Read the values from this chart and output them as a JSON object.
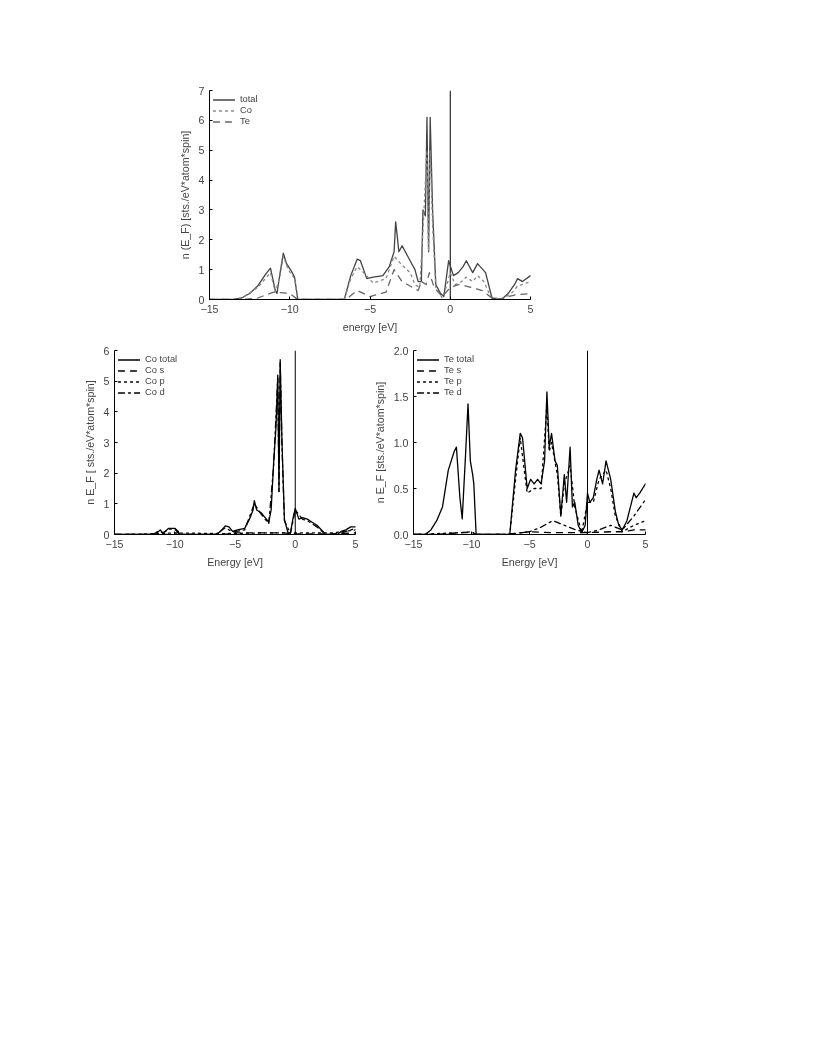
{
  "chart_data": [
    {
      "type": "line",
      "xlabel": "energy [eV]",
      "ylabel": "n (E_F) [sts./eV*atom*spin]",
      "xlim": [
        -15,
        5
      ],
      "ylim": [
        0,
        7
      ],
      "xticks": [
        -15,
        -10,
        -5,
        0,
        5
      ],
      "yticks": [
        0,
        1,
        2,
        3,
        4,
        5,
        6,
        7
      ],
      "grid": false,
      "legend": "top left",
      "ref_lines": [
        {
          "axis": "x",
          "value": 0,
          "color": "#000000"
        }
      ],
      "series": [
        {
          "name": "total",
          "color": "#444444",
          "line_style": "solid",
          "x": [
            -15,
            -13.5,
            -13,
            -12.5,
            -12,
            -11.5,
            -11.2,
            -10.9,
            -10.8,
            -10.6,
            -10.4,
            -10.2,
            -9.9,
            -9.7,
            -9.5,
            -6.6,
            -6.2,
            -5.8,
            -5.6,
            -5.2,
            -4.8,
            -4.2,
            -3.8,
            -3.5,
            -3.4,
            -3.2,
            -3.0,
            -2.6,
            -2.2,
            -2.0,
            -1.8,
            -1.7,
            -1.55,
            -1.45,
            -1.35,
            -1.25,
            -1.1,
            -0.9,
            -0.6,
            -0.4,
            -0.25,
            -0.1,
            0.2,
            0.5,
            0.8,
            1.0,
            1.4,
            1.7,
            2.2,
            2.6,
            3.2,
            3.6,
            4.0,
            4.2,
            4.5,
            5
          ],
          "values": [
            0,
            0,
            0.05,
            0.2,
            0.45,
            0.85,
            1.05,
            0.3,
            0.2,
            0.9,
            1.55,
            1.2,
            0.95,
            0.75,
            0,
            0,
            0.8,
            1.35,
            1.3,
            0.7,
            0.75,
            0.8,
            1.1,
            1.6,
            2.6,
            1.6,
            1.8,
            1.4,
            1.0,
            0.6,
            0.6,
            3.0,
            2.8,
            6.1,
            1.6,
            6.1,
            3.0,
            0.5,
            0.2,
            0.1,
            0.7,
            1.3,
            0.8,
            0.9,
            1.1,
            1.3,
            0.9,
            1.2,
            0.9,
            0.05,
            0,
            0.2,
            0.5,
            0.7,
            0.6,
            0.8
          ]
        },
        {
          "name": "Co",
          "color": "#888888",
          "line_style": "dotted",
          "x": [
            -15,
            -13.5,
            -13,
            -12,
            -11.2,
            -10.9,
            -10.6,
            -10.4,
            -10.1,
            -9.7,
            -9.5,
            -6.6,
            -6.2,
            -5.8,
            -5.4,
            -4.8,
            -4.0,
            -3.5,
            -3.0,
            -2.5,
            -2.2,
            -1.9,
            -1.7,
            -1.45,
            -1.35,
            -1.25,
            -1.1,
            -0.9,
            -0.5,
            -0.2,
            0,
            0.3,
            0.7,
            1.0,
            1.4,
            1.7,
            2.1,
            2.5,
            3.2,
            3.8,
            4.2,
            5
          ],
          "values": [
            0,
            0,
            0.05,
            0.4,
            0.9,
            0.25,
            0.8,
            1.45,
            1.0,
            0.7,
            0,
            0,
            0.7,
            1.1,
            0.9,
            0.55,
            0.7,
            1.45,
            1.15,
            0.9,
            0.5,
            0.4,
            2.3,
            5.0,
            1.6,
            5.0,
            2.5,
            0.4,
            0.05,
            0.5,
            0.9,
            0.5,
            0.6,
            0.75,
            0.6,
            0.8,
            0.6,
            0.1,
            0,
            0.2,
            0.45,
            0.6
          ]
        },
        {
          "name": "Te",
          "color": "#666666",
          "line_style": "dashed",
          "x": [
            -15,
            -13,
            -12,
            -11,
            -10,
            -9.5,
            -6.5,
            -5.8,
            -5,
            -4,
            -3.5,
            -3,
            -2,
            -1.8,
            -1.5,
            -1.3,
            -1,
            -0.5,
            0,
            0.5,
            1,
            2,
            2.6,
            3,
            4,
            5
          ],
          "values": [
            0,
            0,
            0.05,
            0.25,
            0.2,
            0,
            0,
            0.3,
            0.1,
            0.25,
            1.0,
            0.6,
            0.3,
            0.6,
            0.5,
            0.9,
            0.4,
            0.1,
            0.4,
            0.5,
            0.45,
            0.3,
            0.05,
            0,
            0.15,
            0.2
          ]
        }
      ]
    },
    {
      "type": "line",
      "xlabel": "Energy [eV]",
      "ylabel": "n E_F [ sts./eV*atom*spin]",
      "xlim": [
        -15,
        5
      ],
      "ylim": [
        0,
        6
      ],
      "xticks": [
        -15,
        -10,
        -5,
        0,
        5
      ],
      "yticks": [
        0,
        1,
        2,
        3,
        4,
        5,
        6
      ],
      "grid": false,
      "legend": "top left",
      "ref_lines": [
        {
          "axis": "x",
          "value": 0,
          "color": "#000000"
        }
      ],
      "series": [
        {
          "name": "Co total",
          "color": "#000000",
          "line_style": "solid",
          "x": [
            -15,
            -12,
            -11.5,
            -11.2,
            -11,
            -10.8,
            -10.5,
            -10,
            -9.7,
            -9.6,
            -6.6,
            -6.2,
            -5.8,
            -5.5,
            -5.2,
            -4.8,
            -4.2,
            -3.8,
            -3.5,
            -3.4,
            -3.2,
            -2.8,
            -2.4,
            -2.2,
            -2.0,
            -1.8,
            -1.6,
            -1.45,
            -1.35,
            -1.25,
            -1.1,
            -0.9,
            -0.6,
            -0.4,
            -0.2,
            0,
            0.3,
            0.6,
            1.0,
            1.4,
            1.8,
            2.3,
            2.5,
            3.5,
            3.8,
            4.2,
            4.6,
            5
          ],
          "values": [
            0,
            0,
            0.05,
            0.15,
            0.05,
            0.1,
            0.2,
            0.2,
            0.1,
            0,
            0,
            0.1,
            0.28,
            0.25,
            0.1,
            0.15,
            0.2,
            0.5,
            0.8,
            1.1,
            0.8,
            0.7,
            0.5,
            0.4,
            0.8,
            2.3,
            3.5,
            5.2,
            1.4,
            5.7,
            3.0,
            0.5,
            0.05,
            0.05,
            0.5,
            0.85,
            0.5,
            0.55,
            0.5,
            0.4,
            0.3,
            0.1,
            0,
            0,
            0.1,
            0.15,
            0.25,
            0.25
          ]
        },
        {
          "name": "Co s",
          "color": "#000000",
          "line_style": "dashed",
          "x": [
            -15,
            -6,
            -5,
            -1,
            0,
            3,
            5
          ],
          "values": [
            0,
            0,
            0.05,
            0.05,
            0.02,
            0.02,
            0.05
          ]
        },
        {
          "name": "Co p",
          "color": "#000000",
          "line_style": "dotted",
          "x": [
            -15,
            -12,
            -10,
            -6,
            -3,
            -1,
            0,
            2,
            3,
            4,
            5
          ],
          "values": [
            0,
            0.02,
            0.05,
            0.03,
            0.05,
            0.05,
            0.05,
            0.05,
            0.05,
            0.1,
            0.15
          ]
        },
        {
          "name": "Co d",
          "color": "#000000",
          "line_style": "dashdot",
          "x": [
            -15,
            -12,
            -11.2,
            -11,
            -10.5,
            -10,
            -9.6,
            -6.6,
            -5.8,
            -5.2,
            -4.2,
            -3.4,
            -2.8,
            -2.2,
            -1.8,
            -1.45,
            -1.35,
            -1.25,
            -1.1,
            -0.9,
            -0.4,
            0,
            0.6,
            1.0,
            1.8,
            2.5,
            3.5,
            4.2,
            5
          ],
          "values": [
            0,
            0,
            0.12,
            0.04,
            0.18,
            0.18,
            0,
            0,
            0.22,
            0.08,
            0.15,
            1.0,
            0.65,
            0.35,
            2.2,
            5.1,
            1.4,
            5.6,
            2.9,
            0.45,
            0.03,
            0.8,
            0.5,
            0.45,
            0.25,
            0,
            0,
            0.1,
            0.2
          ]
        }
      ]
    },
    {
      "type": "line",
      "xlabel": "Energy [eV]",
      "ylabel": "n E_F [sts./eV*atom*spin]",
      "xlim": [
        -15,
        5
      ],
      "ylim": [
        0,
        2
      ],
      "xticks": [
        -15,
        -10,
        -5,
        0,
        5
      ],
      "yticks": [
        {
          "value": 0,
          "label": "0.0"
        },
        {
          "value": 0.5,
          "label": "0.5"
        },
        {
          "value": 1,
          "label": "1.0"
        },
        {
          "value": 1.5,
          "label": "1.5"
        },
        {
          "value": 2,
          "label": "2.0"
        }
      ],
      "grid": false,
      "legend": "top left",
      "ref_lines": [
        {
          "axis": "x",
          "value": 0,
          "color": "#000000"
        }
      ],
      "series": [
        {
          "name": "Te total",
          "color": "#000000",
          "line_style": "solid",
          "x": [
            -15,
            -14,
            -13.5,
            -13,
            -12.5,
            -12,
            -11.5,
            -11.3,
            -11,
            -10.8,
            -10.5,
            -10.3,
            -10.1,
            -9.9,
            -9.8,
            -9.6,
            -6.7,
            -6.2,
            -5.8,
            -5.6,
            -5.2,
            -4.9,
            -4.6,
            -4.3,
            -4.0,
            -3.7,
            -3.5,
            -3.3,
            -3.1,
            -2.8,
            -2.6,
            -2.3,
            -2.0,
            -1.8,
            -1.5,
            -1.3,
            -1.1,
            -0.8,
            -0.5,
            -0.2,
            0,
            0.2,
            0.5,
            0.8,
            1.0,
            1.3,
            1.6,
            2.0,
            2.4,
            2.7,
            3.0,
            3.4,
            3.7,
            4.0,
            4.2,
            4.5,
            5
          ],
          "values": [
            0,
            0,
            0.05,
            0.15,
            0.3,
            0.7,
            0.9,
            0.95,
            0.4,
            0.17,
            0.9,
            1.42,
            0.8,
            0.65,
            0.55,
            0,
            0,
            0.7,
            1.1,
            1.05,
            0.5,
            0.6,
            0.55,
            0.6,
            0.55,
            0.8,
            1.55,
            0.95,
            1.1,
            0.8,
            0.75,
            0.2,
            0.65,
            0.35,
            0.95,
            0.3,
            0.35,
            0.1,
            0.02,
            0.1,
            0.45,
            0.35,
            0.4,
            0.6,
            0.7,
            0.55,
            0.8,
            0.6,
            0.25,
            0.1,
            0.05,
            0.15,
            0.3,
            0.45,
            0.4,
            0.45,
            0.55
          ]
        },
        {
          "name": "Te s",
          "color": "#000000",
          "line_style": "dashed",
          "x": [
            -15,
            -13,
            -11,
            -10,
            -9.6,
            -7,
            -5,
            -3,
            -1,
            0,
            2,
            3,
            4,
            5
          ],
          "values": [
            0,
            0,
            0.02,
            0.03,
            0,
            0,
            0.03,
            0.02,
            0.02,
            0.02,
            0.03,
            0.03,
            0.05,
            0.05
          ]
        },
        {
          "name": "Te p",
          "color": "#000000",
          "line_style": "dotted",
          "x": [
            -15,
            -11,
            -10,
            -9.6,
            -6.7,
            -6.2,
            -5.8,
            -5.2,
            -4.6,
            -4,
            -3.5,
            -3.3,
            -3.1,
            -2.6,
            -2.3,
            -2,
            -1.5,
            -1.1,
            -0.5,
            0,
            0.5,
            1,
            1.6,
            2,
            2.4,
            3,
            4,
            5
          ],
          "values": [
            0,
            0.02,
            0.03,
            0,
            0,
            0.6,
            1.05,
            0.45,
            0.5,
            0.5,
            1.4,
            0.9,
            1.0,
            0.65,
            0.2,
            0.55,
            0.75,
            0.3,
            0.02,
            0.35,
            0.35,
            0.6,
            0.7,
            0.5,
            0.2,
            0.03,
            0.1,
            0.15
          ]
        },
        {
          "name": "Te d",
          "color": "#000000",
          "line_style": "dashdot",
          "x": [
            -15,
            -7,
            -5,
            -4,
            -3,
            -2,
            -1,
            0,
            1,
            2,
            3,
            4,
            5
          ],
          "values": [
            0,
            0,
            0.03,
            0.08,
            0.15,
            0.1,
            0.05,
            0.02,
            0.05,
            0.1,
            0.05,
            0.2,
            0.38
          ]
        }
      ]
    }
  ]
}
